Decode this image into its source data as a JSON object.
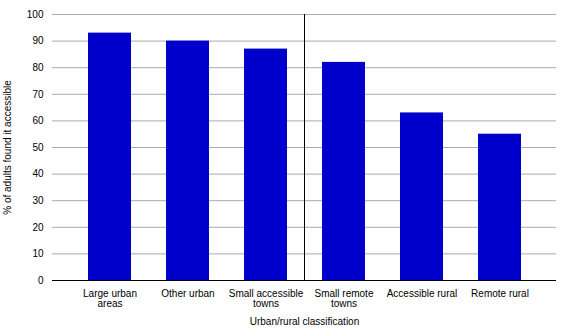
{
  "chart_data": {
    "type": "bar",
    "categories": [
      "Large urban\nareas",
      "Other urban",
      "Small accessible\ntowns",
      "Small remote\ntowns",
      "Accessible rural",
      "Remote rural"
    ],
    "values": [
      93,
      90,
      87,
      82,
      63,
      55
    ],
    "color": "#0000CC",
    "xlabel": "Urban/rural classification",
    "ylabel": "% of adults found it accessible",
    "ylim": [
      0,
      100
    ],
    "yticks": [
      0,
      10,
      20,
      30,
      40,
      50,
      60,
      70,
      80,
      90,
      100
    ],
    "grid": true
  }
}
